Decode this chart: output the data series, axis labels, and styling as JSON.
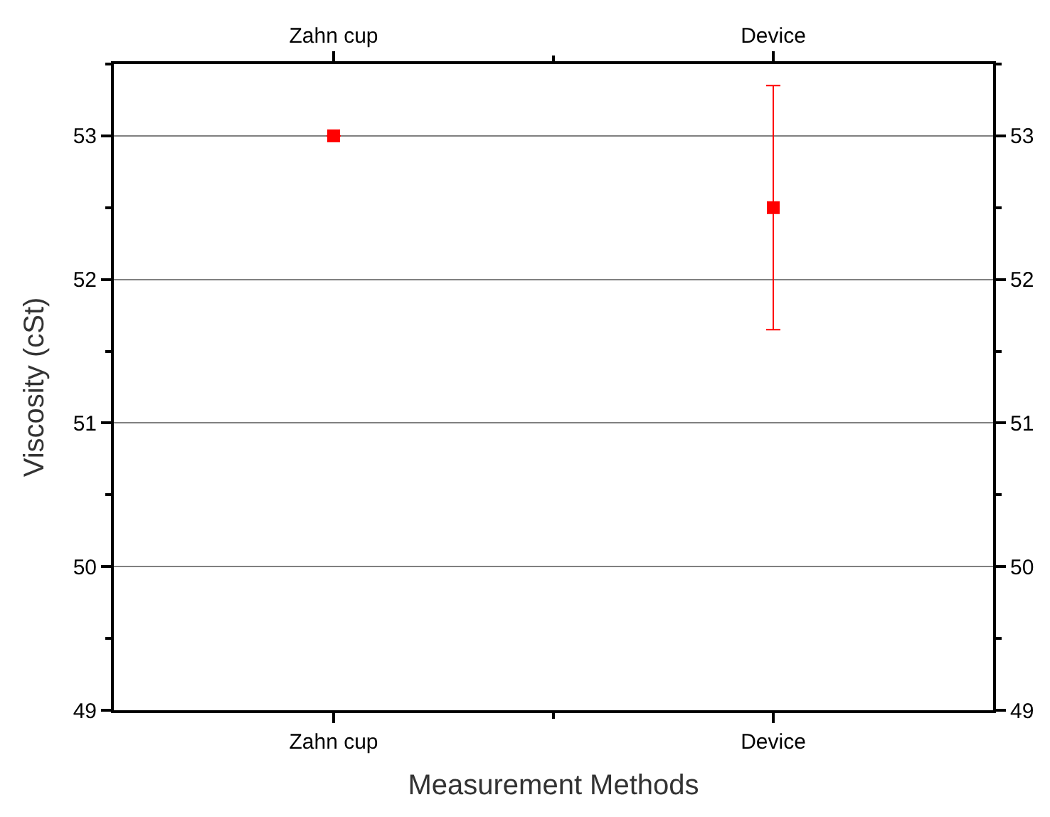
{
  "chart_data": {
    "type": "scatter",
    "xlabel": "Measurement Methods",
    "ylabel": "Viscosity (cSt)",
    "categories": [
      "Zahn cup",
      "Device"
    ],
    "series": [
      {
        "color": "#ff0000",
        "values": [
          53,
          52.5
        ],
        "errors": [
          null,
          0.85
        ]
      }
    ],
    "ylim": [
      49,
      53.5
    ],
    "yticks": [
      49,
      50,
      51,
      52,
      53
    ],
    "y2lim": [
      49,
      53.5
    ],
    "y2ticks": [
      49,
      50,
      51,
      52,
      53
    ],
    "grid": "y",
    "marker": "square"
  }
}
